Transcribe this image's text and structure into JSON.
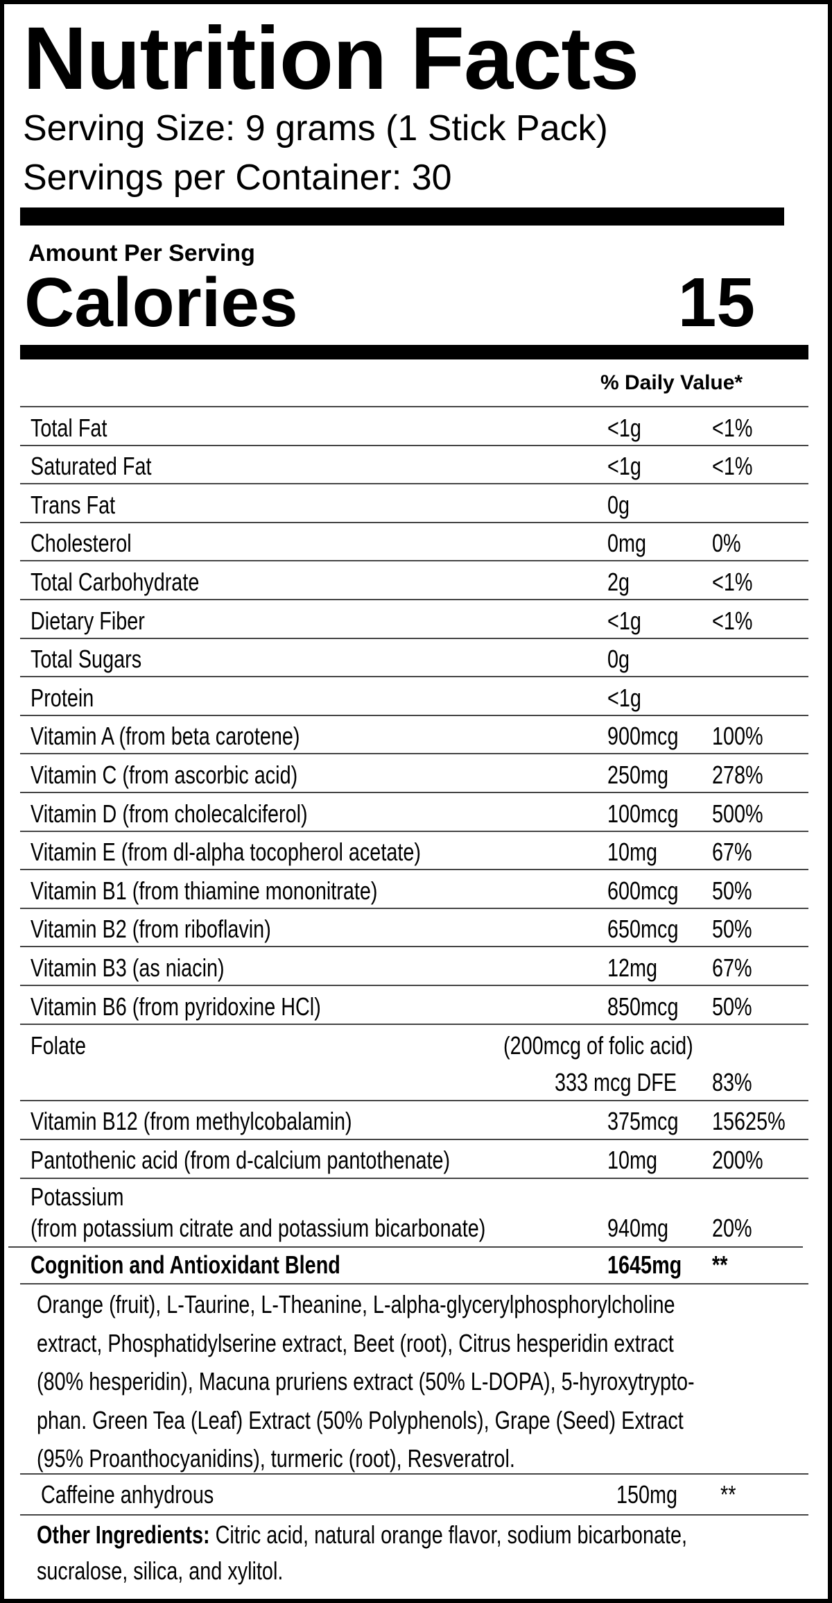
{
  "header": {
    "title": "Nutrition Facts",
    "serving_size": "Serving Size: 9 grams (1 Stick Pack)",
    "servings_per_container": "Servings per Container: 30"
  },
  "calories": {
    "amount_label": "Amount Per Serving",
    "label": "Calories",
    "value": "15"
  },
  "daily_value_header": "% Daily Value*",
  "rows": [
    {
      "name": "Total Fat",
      "amount": "<1g",
      "dv": "<1%"
    },
    {
      "name": "Saturated Fat",
      "amount": "<1g",
      "dv": "<1%"
    },
    {
      "name": "Trans Fat",
      "amount": "0g",
      "dv": ""
    },
    {
      "name": "Cholesterol",
      "amount": "0mg",
      "dv": "0%"
    },
    {
      "name": "Total Carbohydrate",
      "amount": "2g",
      "dv": "<1%"
    },
    {
      "name": "Dietary Fiber",
      "amount": "<1g",
      "dv": "<1%"
    },
    {
      "name": "Total Sugars",
      "amount": "0g",
      "dv": ""
    },
    {
      "name": "Protein",
      "amount": "<1g",
      "dv": ""
    },
    {
      "name": "Vitamin A (from beta carotene)",
      "amount": "900mcg",
      "dv": "100%"
    },
    {
      "name": "Vitamin C (from ascorbic acid)",
      "amount": "250mg",
      "dv": "278%"
    },
    {
      "name": "Vitamin D (from cholecalciferol)",
      "amount": "100mcg",
      "dv": "500%"
    },
    {
      "name": "Vitamin E (from dl-alpha tocopherol acetate)",
      "amount": "10mg",
      "dv": "67%"
    },
    {
      "name": "Vitamin B1 (from thiamine mononitrate)",
      "amount": "600mcg",
      "dv": "50%"
    },
    {
      "name": "Vitamin B2 (from riboflavin)",
      "amount": "650mcg",
      "dv": "50%"
    },
    {
      "name": "Vitamin B3 (as niacin)",
      "amount": "12mg",
      "dv": "67%"
    },
    {
      "name": "Vitamin B6 (from pyridoxine HCl)",
      "amount": "850mcg",
      "dv": "50%"
    }
  ],
  "folate": {
    "name": "Folate",
    "note": "(200mcg of folic acid)",
    "amount": "333 mcg DFE",
    "dv": "83%"
  },
  "b12": {
    "name": "Vitamin B12 (from methylcobalamin)",
    "amount": "375mcg",
    "dv": "15625%"
  },
  "pantothenic": {
    "name": "Pantothenic acid (from d-calcium pantothenate)",
    "amount": "10mg",
    "dv": "200%"
  },
  "potassium": {
    "name": "Potassium",
    "source": "(from potassium citrate and potassium bicarbonate)",
    "amount": "940mg",
    "dv": "20%"
  },
  "blend": {
    "name": "Cognition and Antioxidant Blend",
    "amount": "1645mg",
    "dv": "**",
    "ingredients_lines": [
      "Orange (fruit), L-Taurine, L-Theanine, L-alpha-glycerylphosphorylcholine",
      "extract, Phosphatidylserine extract, Beet (root), Citrus hesperidin extract",
      "(80% hesperidin), Macuna pruriens extract (50% L-DOPA), 5-hyroxytrypto-",
      "phan. Green Tea (Leaf) Extract (50% Polyphenols), Grape (Seed) Extract",
      "(95% Proanthocyanidins), turmeric (root), Resveratrol."
    ]
  },
  "caffeine": {
    "name": "Caffeine anhydrous",
    "amount": "150mg",
    "dv": "**"
  },
  "other": {
    "label": "Other Ingredients:",
    "line1": "Citric acid, natural orange flavor, sodium bicarbonate,",
    "line2": "sucralose, silica, and xylitol."
  }
}
